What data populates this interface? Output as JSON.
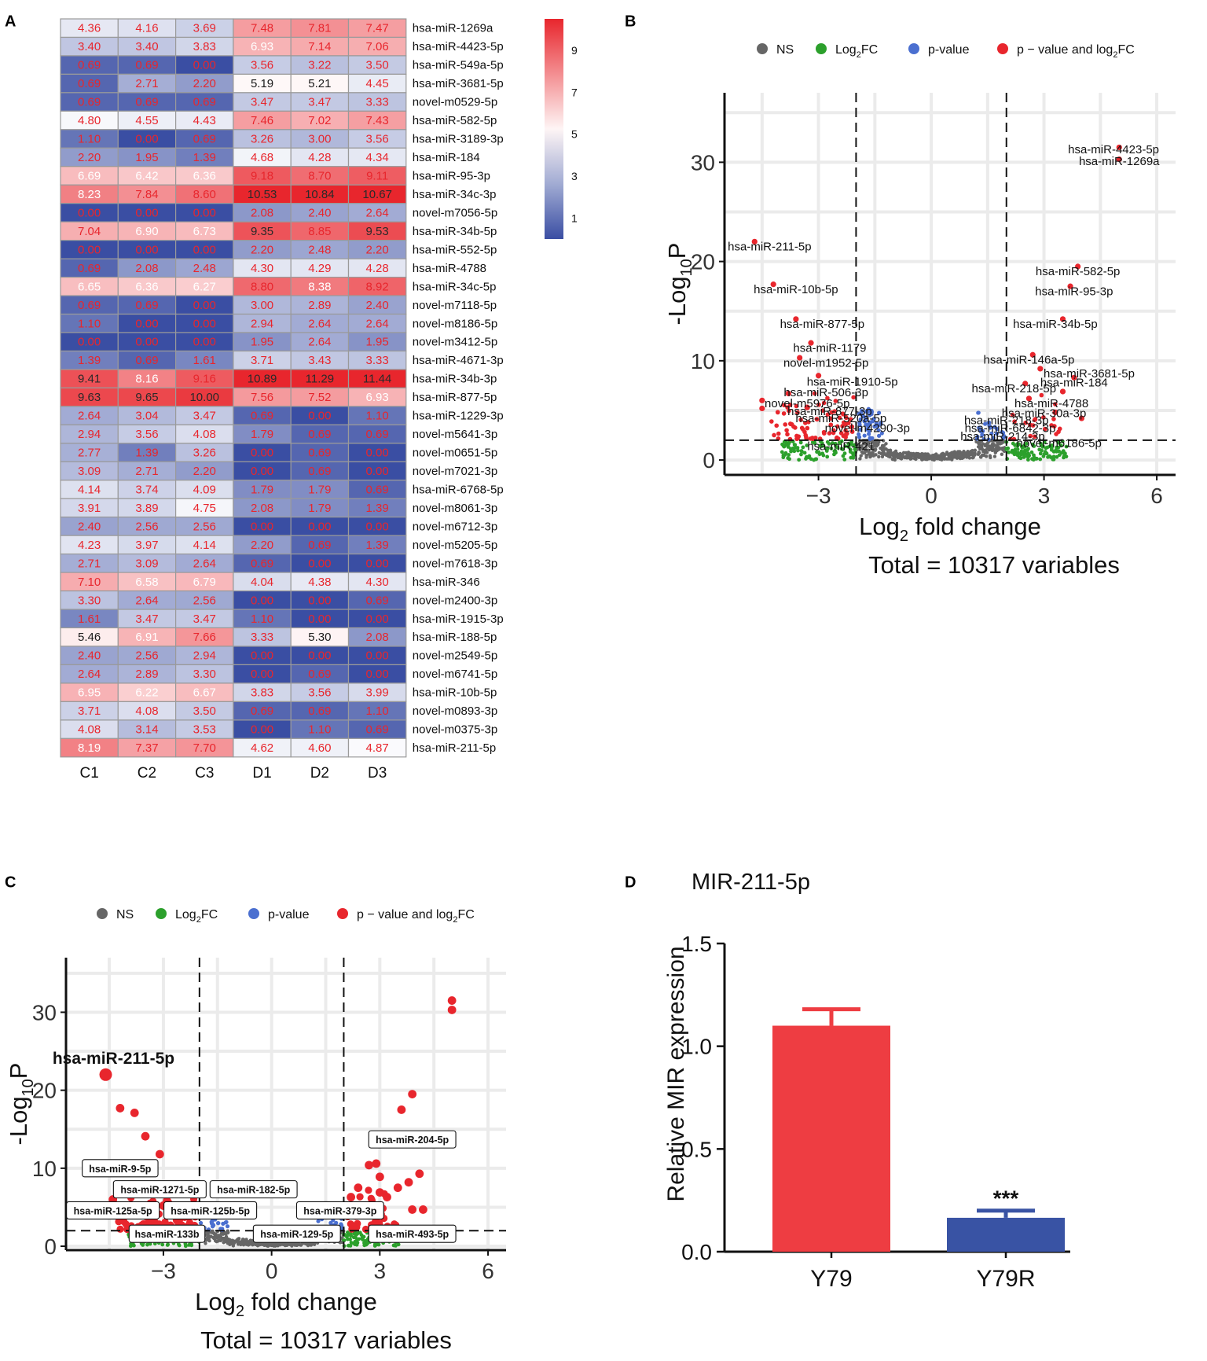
{
  "panel_letters": [
    "A",
    "B",
    "C",
    "D"
  ],
  "chart_data": [
    {
      "type": "heatmap",
      "panel": "A",
      "columns": [
        "C1",
        "C2",
        "C3",
        "D1",
        "D2",
        "D3"
      ],
      "rows": [
        {
          "name": "hsa-miR-1269a",
          "values": [
            4.36,
            4.16,
            3.69,
            7.48,
            7.81,
            7.47
          ]
        },
        {
          "name": "hsa-miR-4423-5p",
          "values": [
            3.4,
            3.4,
            3.83,
            6.93,
            7.14,
            7.06
          ]
        },
        {
          "name": "hsa-miR-549a-5p",
          "values": [
            0.69,
            0.69,
            0.0,
            3.56,
            3.22,
            3.5
          ]
        },
        {
          "name": "hsa-miR-3681-5p",
          "values": [
            0.69,
            2.71,
            2.2,
            5.19,
            5.21,
            4.45
          ]
        },
        {
          "name": "novel-m0529-5p",
          "values": [
            0.69,
            0.69,
            0.69,
            3.47,
            3.47,
            3.33
          ]
        },
        {
          "name": "hsa-miR-582-5p",
          "values": [
            4.8,
            4.55,
            4.43,
            7.46,
            7.02,
            7.43
          ]
        },
        {
          "name": "hsa-miR-3189-3p",
          "values": [
            1.1,
            0.0,
            0.69,
            3.26,
            3.0,
            3.56
          ]
        },
        {
          "name": "hsa-miR-184",
          "values": [
            2.2,
            1.95,
            1.39,
            4.68,
            4.28,
            4.34
          ]
        },
        {
          "name": "hsa-miR-95-3p",
          "values": [
            6.69,
            6.42,
            6.36,
            9.18,
            8.7,
            9.11
          ]
        },
        {
          "name": "hsa-miR-34c-3p",
          "values": [
            8.23,
            7.84,
            8.6,
            10.53,
            10.84,
            10.67
          ]
        },
        {
          "name": "novel-m7056-5p",
          "values": [
            0.0,
            0.0,
            0.0,
            2.08,
            2.4,
            2.64
          ]
        },
        {
          "name": "hsa-miR-34b-5p",
          "values": [
            7.04,
            6.9,
            6.73,
            9.35,
            8.85,
            9.53
          ]
        },
        {
          "name": "hsa-miR-552-5p",
          "values": [
            0.0,
            0.0,
            0.0,
            2.2,
            2.48,
            2.2
          ]
        },
        {
          "name": "hsa-miR-4788",
          "values": [
            0.69,
            2.08,
            2.48,
            4.3,
            4.29,
            4.28
          ]
        },
        {
          "name": "hsa-miR-34c-5p",
          "values": [
            6.65,
            6.36,
            6.27,
            8.8,
            8.38,
            8.92
          ]
        },
        {
          "name": "novel-m7118-5p",
          "values": [
            0.69,
            0.69,
            0.0,
            3.0,
            2.89,
            2.4
          ]
        },
        {
          "name": "novel-m8186-5p",
          "values": [
            1.1,
            0.0,
            0.0,
            2.94,
            2.64,
            2.64
          ]
        },
        {
          "name": "novel-m3412-5p",
          "values": [
            0.0,
            0.0,
            0.0,
            1.95,
            2.64,
            1.95
          ]
        },
        {
          "name": "hsa-miR-4671-3p",
          "values": [
            1.39,
            0.69,
            1.61,
            3.71,
            3.43,
            3.33
          ]
        },
        {
          "name": "hsa-miR-34b-3p",
          "values": [
            9.41,
            8.16,
            9.16,
            10.89,
            11.29,
            11.44
          ]
        },
        {
          "name": "hsa-miR-877-5p",
          "values": [
            9.63,
            9.65,
            10.0,
            7.56,
            7.52,
            6.93
          ]
        },
        {
          "name": "hsa-miR-1229-3p",
          "values": [
            2.64,
            3.04,
            3.47,
            0.69,
            0.0,
            1.1
          ]
        },
        {
          "name": "novel-m5641-3p",
          "values": [
            2.94,
            3.56,
            4.08,
            1.79,
            0.69,
            0.69
          ]
        },
        {
          "name": "novel-m0651-5p",
          "values": [
            2.77,
            1.39,
            3.26,
            0.0,
            0.69,
            0.0
          ]
        },
        {
          "name": "novel-m7021-3p",
          "values": [
            3.09,
            2.71,
            2.2,
            0.0,
            0.69,
            0.0
          ]
        },
        {
          "name": "hsa-miR-6768-5p",
          "values": [
            4.14,
            3.74,
            4.09,
            1.79,
            1.79,
            0.69
          ]
        },
        {
          "name": "novel-m8061-3p",
          "values": [
            3.91,
            3.89,
            4.75,
            2.08,
            1.79,
            1.39
          ]
        },
        {
          "name": "novel-m6712-3p",
          "values": [
            2.4,
            2.56,
            2.56,
            0.0,
            0.0,
            0.0
          ]
        },
        {
          "name": "novel-m5205-5p",
          "values": [
            4.23,
            3.97,
            4.14,
            2.2,
            0.69,
            1.39
          ]
        },
        {
          "name": "novel-m7618-3p",
          "values": [
            2.71,
            3.09,
            2.64,
            0.69,
            0.0,
            0.0
          ]
        },
        {
          "name": "hsa-miR-346",
          "values": [
            7.1,
            6.58,
            6.79,
            4.04,
            4.38,
            4.3
          ]
        },
        {
          "name": "novel-m2400-3p",
          "values": [
            3.3,
            2.64,
            2.56,
            0.0,
            0.0,
            0.69
          ]
        },
        {
          "name": "hsa-miR-1915-3p",
          "values": [
            1.61,
            3.47,
            3.47,
            1.1,
            0.0,
            0.0
          ]
        },
        {
          "name": "hsa-miR-188-5p",
          "values": [
            5.46,
            6.91,
            7.66,
            3.33,
            5.3,
            2.08
          ]
        },
        {
          "name": "novel-m2549-5p",
          "values": [
            2.4,
            2.56,
            2.94,
            0.0,
            0.0,
            0.0
          ]
        },
        {
          "name": "novel-m6741-5p",
          "values": [
            2.64,
            2.89,
            3.3,
            0.0,
            0.69,
            0.0
          ]
        },
        {
          "name": "hsa-miR-10b-5p",
          "values": [
            6.95,
            6.22,
            6.67,
            3.83,
            3.56,
            3.99
          ]
        },
        {
          "name": "novel-m0893-3p",
          "values": [
            3.71,
            4.08,
            3.5,
            0.69,
            0.69,
            1.1
          ]
        },
        {
          "name": "novel-m0375-3p",
          "values": [
            4.08,
            3.14,
            3.53,
            0.0,
            1.1,
            0.69
          ]
        },
        {
          "name": "hsa-miR-211-5p",
          "values": [
            8.19,
            7.37,
            7.7,
            4.62,
            4.6,
            4.87
          ]
        }
      ],
      "color_scale": {
        "low": "#3a4ea3",
        "mid": "#ffffff",
        "high": "#e8262d",
        "min": 0,
        "mid_value": 5,
        "max": 10.5
      },
      "legend_ticks": [
        9,
        7,
        5,
        3,
        1
      ]
    },
    {
      "type": "scatter",
      "panel": "B",
      "xlabel": "Log2 fold change",
      "ylabel": "-Log10P",
      "xlim": [
        -5.5,
        6.5
      ],
      "ylim": [
        -1.5,
        37
      ],
      "xticks": [
        -3,
        0,
        3,
        6
      ],
      "yticks": [
        0,
        10,
        20,
        30
      ],
      "fc_cutoff": [
        -2,
        2
      ],
      "p_cutoff": 2,
      "legend": [
        "NS",
        "Log2FC",
        "p-value",
        "p - value and log2FC"
      ],
      "colors": {
        "NS": "#666666",
        "Log2FC": "#2ca02c",
        "p-value": "#4a6fd0",
        "both": "#e8262d"
      },
      "caption": "Total = 10317 variables",
      "points": [
        {
          "x": 5.0,
          "y": 31.5
        },
        {
          "x": 5.0,
          "y": 30.3
        },
        {
          "x": -4.7,
          "y": 22.0
        },
        {
          "x": 3.9,
          "y": 19.5
        },
        {
          "x": -4.2,
          "y": 17.7
        },
        {
          "x": 3.7,
          "y": 17.5
        },
        {
          "x": -3.6,
          "y": 14.2
        },
        {
          "x": 3.5,
          "y": 14.2
        },
        {
          "x": -3.2,
          "y": 11.8
        },
        {
          "x": 2.7,
          "y": 10.6
        },
        {
          "x": -3.5,
          "y": 10.3
        },
        {
          "x": 2.9,
          "y": 9.2
        },
        {
          "x": 3.8,
          "y": 8.3
        },
        {
          "x": -3.0,
          "y": 8.5
        },
        {
          "x": 2.5,
          "y": 7.7
        },
        {
          "x": -4.5,
          "y": 6.0
        },
        {
          "x": -4.5,
          "y": 5.2
        },
        {
          "x": 2.6,
          "y": 6.2
        },
        {
          "x": 3.3,
          "y": 4.8
        },
        {
          "x": 3.5,
          "y": 6.9
        },
        {
          "x": -3.8,
          "y": 6.7
        },
        {
          "x": -3.3,
          "y": 5.3
        },
        {
          "x": 4.0,
          "y": 4.2
        }
      ],
      "labels": [
        {
          "text": "hsa-miR-4423-5p",
          "x": 4.85,
          "y": 31.3
        },
        {
          "text": "hsa-miR-1269a",
          "x": 5.0,
          "y": 30.1
        },
        {
          "text": "hsa-miR-211-5p",
          "x": -4.3,
          "y": 21.5
        },
        {
          "text": "hsa-miR-582-5p",
          "x": 3.9,
          "y": 19.0
        },
        {
          "text": "hsa-miR-10b-5p",
          "x": -3.6,
          "y": 17.2
        },
        {
          "text": "hsa-miR-95-3p",
          "x": 3.8,
          "y": 17.0
        },
        {
          "text": "hsa-miR-877-5p",
          "x": -2.9,
          "y": 13.7
        },
        {
          "text": "hsa-miR-34b-5p",
          "x": 3.3,
          "y": 13.7
        },
        {
          "text": "hsa-miR-1179",
          "x": -2.7,
          "y": 11.3
        },
        {
          "text": "hsa-miR-146a-5p",
          "x": 2.6,
          "y": 10.1
        },
        {
          "text": "novel-m1952-5p",
          "x": -2.8,
          "y": 9.8
        },
        {
          "text": "hsa-miR-3681-5p",
          "x": 4.2,
          "y": 8.7
        },
        {
          "text": "hsa-miR-1910-5p",
          "x": -2.1,
          "y": 7.9
        },
        {
          "text": "hsa-miR-184",
          "x": 3.8,
          "y": 7.8
        },
        {
          "text": "hsa-miR-506-3p",
          "x": -2.8,
          "y": 6.8
        },
        {
          "text": "hsa-miR-218-5p",
          "x": 2.2,
          "y": 7.2
        },
        {
          "text": "novel-m5976-5p",
          "x": -3.3,
          "y": 5.7
        },
        {
          "text": "hsa-miR-4788",
          "x": 3.2,
          "y": 5.7
        },
        {
          "text": "hsa-miR-877-3p",
          "x": -2.7,
          "y": 4.9
        },
        {
          "text": "hsa-miR-30a-3p",
          "x": 3.0,
          "y": 4.7
        },
        {
          "text": "hsa-miR-520a-5p",
          "x": -2.4,
          "y": 4.2
        },
        {
          "text": "hsa-miR-218-3p",
          "x": 2.0,
          "y": 4.0
        },
        {
          "text": "novel-m4290-3p",
          "x": -1.7,
          "y": 3.2
        },
        {
          "text": "hsa-miR-6842-3p",
          "x": 2.1,
          "y": 3.2
        },
        {
          "text": "hsa-miR-214-3p",
          "x": 1.9,
          "y": 2.4
        },
        {
          "text": "novel-m6186-5p",
          "x": 3.4,
          "y": 1.7
        },
        {
          "text": "hsa-miR-421",
          "x": -2.4,
          "y": 1.4
        }
      ]
    },
    {
      "type": "scatter",
      "panel": "C",
      "xlabel": "Log2 fold change",
      "ylabel": "-Log10P",
      "xlim": [
        -5.7,
        6.5
      ],
      "ylim": [
        -0.5,
        37
      ],
      "xticks": [
        -3,
        0,
        3,
        6
      ],
      "yticks": [
        0,
        10,
        20,
        30
      ],
      "fc_cutoff": [
        -2,
        2
      ],
      "p_cutoff": 2,
      "legend": [
        "NS",
        "Log2FC",
        "p-value",
        "p - value and log2FC"
      ],
      "colors": {
        "NS": "#666666",
        "Log2FC": "#2ca02c",
        "p-value": "#4a6fd0",
        "both": "#e8262d"
      },
      "caption": "Total = 10317 variables",
      "highlight": {
        "text": "hsa-miR-211-5p",
        "x": -4.6,
        "y": 22.0
      },
      "points": [
        {
          "x": 5.0,
          "y": 31.5
        },
        {
          "x": 5.0,
          "y": 30.3
        },
        {
          "x": 3.9,
          "y": 19.5
        },
        {
          "x": 3.6,
          "y": 17.5
        },
        {
          "x": -4.2,
          "y": 17.7
        },
        {
          "x": -3.8,
          "y": 17.1
        },
        {
          "x": -3.5,
          "y": 14.1
        },
        {
          "x": -3.1,
          "y": 11.8
        },
        {
          "x": 2.9,
          "y": 10.6
        },
        {
          "x": 2.7,
          "y": 10.4
        },
        {
          "x": 4.1,
          "y": 9.3
        },
        {
          "x": 3.0,
          "y": 8.9
        },
        {
          "x": 3.8,
          "y": 8.2
        },
        {
          "x": 3.5,
          "y": 7.5
        },
        {
          "x": 2.4,
          "y": 7.5
        },
        {
          "x": 2.2,
          "y": 6.3
        },
        {
          "x": 3.2,
          "y": 6.3
        },
        {
          "x": 3.0,
          "y": 6.9
        },
        {
          "x": 3.9,
          "y": 4.7
        },
        {
          "x": 4.2,
          "y": 4.7
        },
        {
          "x": 2.8,
          "y": 4.9
        },
        {
          "x": -2.7,
          "y": 7.5
        },
        {
          "x": -3.3,
          "y": 6.8
        },
        {
          "x": -2.9,
          "y": 5.8
        },
        {
          "x": -4.4,
          "y": 6.0
        },
        {
          "x": -3.0,
          "y": 5.2
        },
        {
          "x": -3.6,
          "y": 4.9
        },
        {
          "x": -2.5,
          "y": 4.7
        }
      ],
      "labels": [
        {
          "text": "hsa-miR-204-5p",
          "x": 3.9,
          "y": 13.7
        },
        {
          "text": "hsa-miR-9-5p",
          "x": -4.2,
          "y": 10.0
        },
        {
          "text": "hsa-miR-1271-5p",
          "x": -3.1,
          "y": 7.3
        },
        {
          "text": "hsa-miR-182-5p",
          "x": -0.5,
          "y": 7.3
        },
        {
          "text": "hsa-miR-125a-5p",
          "x": -4.4,
          "y": 4.6
        },
        {
          "text": "hsa-miR-125b-5p",
          "x": -1.7,
          "y": 4.6
        },
        {
          "text": "hsa-miR-379-3p",
          "x": 1.9,
          "y": 4.6
        },
        {
          "text": "hsa-miR-133b",
          "x": -2.9,
          "y": 1.6
        },
        {
          "text": "hsa-miR-129-5p",
          "x": 0.7,
          "y": 1.6
        },
        {
          "text": "hsa-miR-493-5p",
          "x": 3.9,
          "y": 1.6
        }
      ]
    },
    {
      "type": "bar",
      "panel": "D",
      "title": "MIR-211-5p",
      "ylabel": "Relative MIR expression",
      "categories": [
        "Y79",
        "Y79R"
      ],
      "values": [
        1.1,
        0.165
      ],
      "errors": [
        0.08,
        0.035
      ],
      "colors": [
        "#ee3d42",
        "#3953a4"
      ],
      "ylim": [
        0,
        1.5
      ],
      "yticks": [
        "0.0",
        "0.5",
        "1.0",
        "1.5"
      ],
      "significance": "***"
    }
  ]
}
